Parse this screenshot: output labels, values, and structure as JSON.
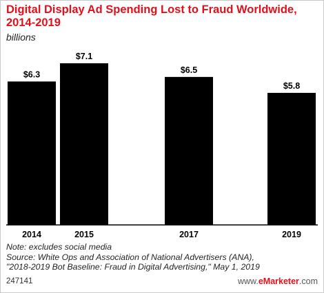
{
  "header": {
    "title": "Digital Display Ad Spending Lost to Fraud Worldwide, 2014-2019",
    "subtitle": "billions"
  },
  "chart_data": {
    "type": "bar",
    "title": "Digital Display Ad Spending Lost to Fraud Worldwide, 2014-2019",
    "subtitle": "billions",
    "categories": [
      "2014",
      "2015",
      "2017",
      "2019"
    ],
    "values": [
      6.3,
      7.1,
      6.5,
      5.8
    ],
    "value_labels": [
      "$6.3",
      "$7.1",
      "$6.5",
      "$5.8"
    ],
    "xlabel": "",
    "ylabel": "",
    "ylim": [
      0,
      7.1
    ],
    "bar_color": "#000000",
    "grid": false,
    "legend": "none"
  },
  "footer": {
    "note": "Note: excludes social media",
    "source_line1": "Source: White Ops and Association of National Advertisers (ANA),",
    "source_line2": "\"2018-2019 Bot Baseline: Fraud in Digital Advertising,\" May 1, 2019",
    "chart_id": "247141",
    "brand_prefix": "www.",
    "brand_name": "eMarketer",
    "brand_suffix": ".com"
  },
  "colors": {
    "title": "#e3101b",
    "bars": "#000000",
    "axis": "#000000"
  }
}
